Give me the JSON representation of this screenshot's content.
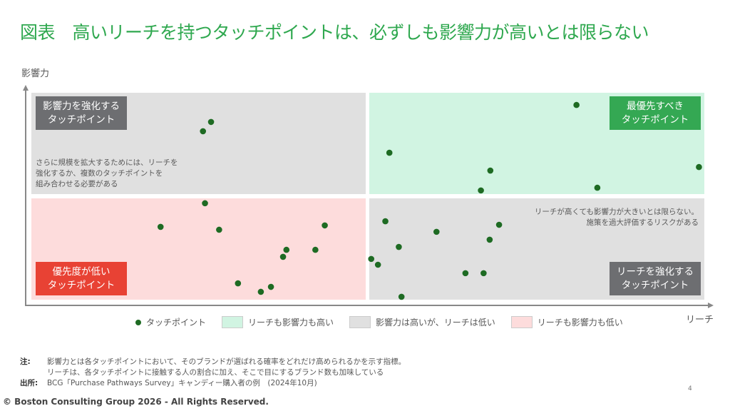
{
  "title": "図表　高いリーチを持つタッチポイントは、必ずしも影響力が高いとは限らない",
  "colors": {
    "title": "#2fa84f",
    "point": "#1e6b23",
    "q_high_high": "#d1f4e2",
    "q_gray": "#e0e0e0",
    "q_low_low": "#fddcdc",
    "label_green": "#34a853",
    "label_gray": "#6d6e71",
    "label_red": "#e84234"
  },
  "quadrants": {
    "top_left": {
      "label": "影響力を強化する\nタッチポイント",
      "note": "さらに規模を拡大するためには、リーチを\n強化するか、複数のタッチポイントを\n組み合わせる必要がある"
    },
    "top_right": {
      "label": "最優先すべき\nタッチポイント"
    },
    "bottom_left": {
      "label": "優先度が低い\nタッチポイント"
    },
    "bottom_right": {
      "label": "リーチを強化する\nタッチポイント",
      "note": "リーチが高くても影響力が大きいとは限らない。\n施策を過大評価するリスクがある"
    }
  },
  "legend": {
    "points": "タッチポイント",
    "high_high": "リーチも影響力も高い",
    "high_inf_low_reach": "影響力は高いが、リーチは低い",
    "low_low": "リーチも影響力も低い"
  },
  "chart_data": {
    "type": "scatter",
    "xlabel": "リーチ",
    "ylabel": "影響力",
    "xlim": [
      0,
      100
    ],
    "ylim": [
      0,
      100
    ],
    "grid": false,
    "legend_position": "bottom",
    "series": [
      {
        "name": "タッチポイント",
        "points": [
          [
            26.7,
            85.9
          ],
          [
            25.5,
            81.4
          ],
          [
            81.0,
            94.1
          ],
          [
            53.2,
            71.0
          ],
          [
            68.2,
            62.4
          ],
          [
            66.8,
            52.8
          ],
          [
            84.1,
            54.1
          ],
          [
            99.2,
            64.1
          ],
          [
            25.8,
            46.6
          ],
          [
            19.2,
            35.2
          ],
          [
            27.9,
            33.8
          ],
          [
            43.6,
            35.9
          ],
          [
            37.9,
            24.1
          ],
          [
            37.4,
            20.7
          ],
          [
            42.2,
            24.1
          ],
          [
            30.7,
            7.9
          ],
          [
            34.1,
            3.8
          ],
          [
            35.6,
            6.2
          ],
          [
            52.6,
            37.9
          ],
          [
            60.2,
            32.8
          ],
          [
            69.5,
            36.2
          ],
          [
            68.1,
            29.0
          ],
          [
            54.6,
            25.5
          ],
          [
            50.5,
            19.7
          ],
          [
            51.5,
            16.9
          ],
          [
            64.5,
            12.8
          ],
          [
            67.2,
            12.8
          ],
          [
            55.0,
            1.4
          ]
        ]
      }
    ]
  },
  "footer": {
    "note_key": "注:",
    "note_1": "影響力とは各タッチポイントにおいて、そのブランドが選ばれる確率をどれだけ高められるかを示す指標。",
    "note_2": "リーチは、各タッチポイントに接触する人の割合に加え、そこで目にするブランド数も加味している",
    "source_key": "出所:",
    "source": "BCG「Purchase Pathways Survey」キャンディー購入者の例　(2024年10月)"
  },
  "copyright": "© Boston Consulting Group 2026 - All Rights Reserved.",
  "page_number": "4"
}
